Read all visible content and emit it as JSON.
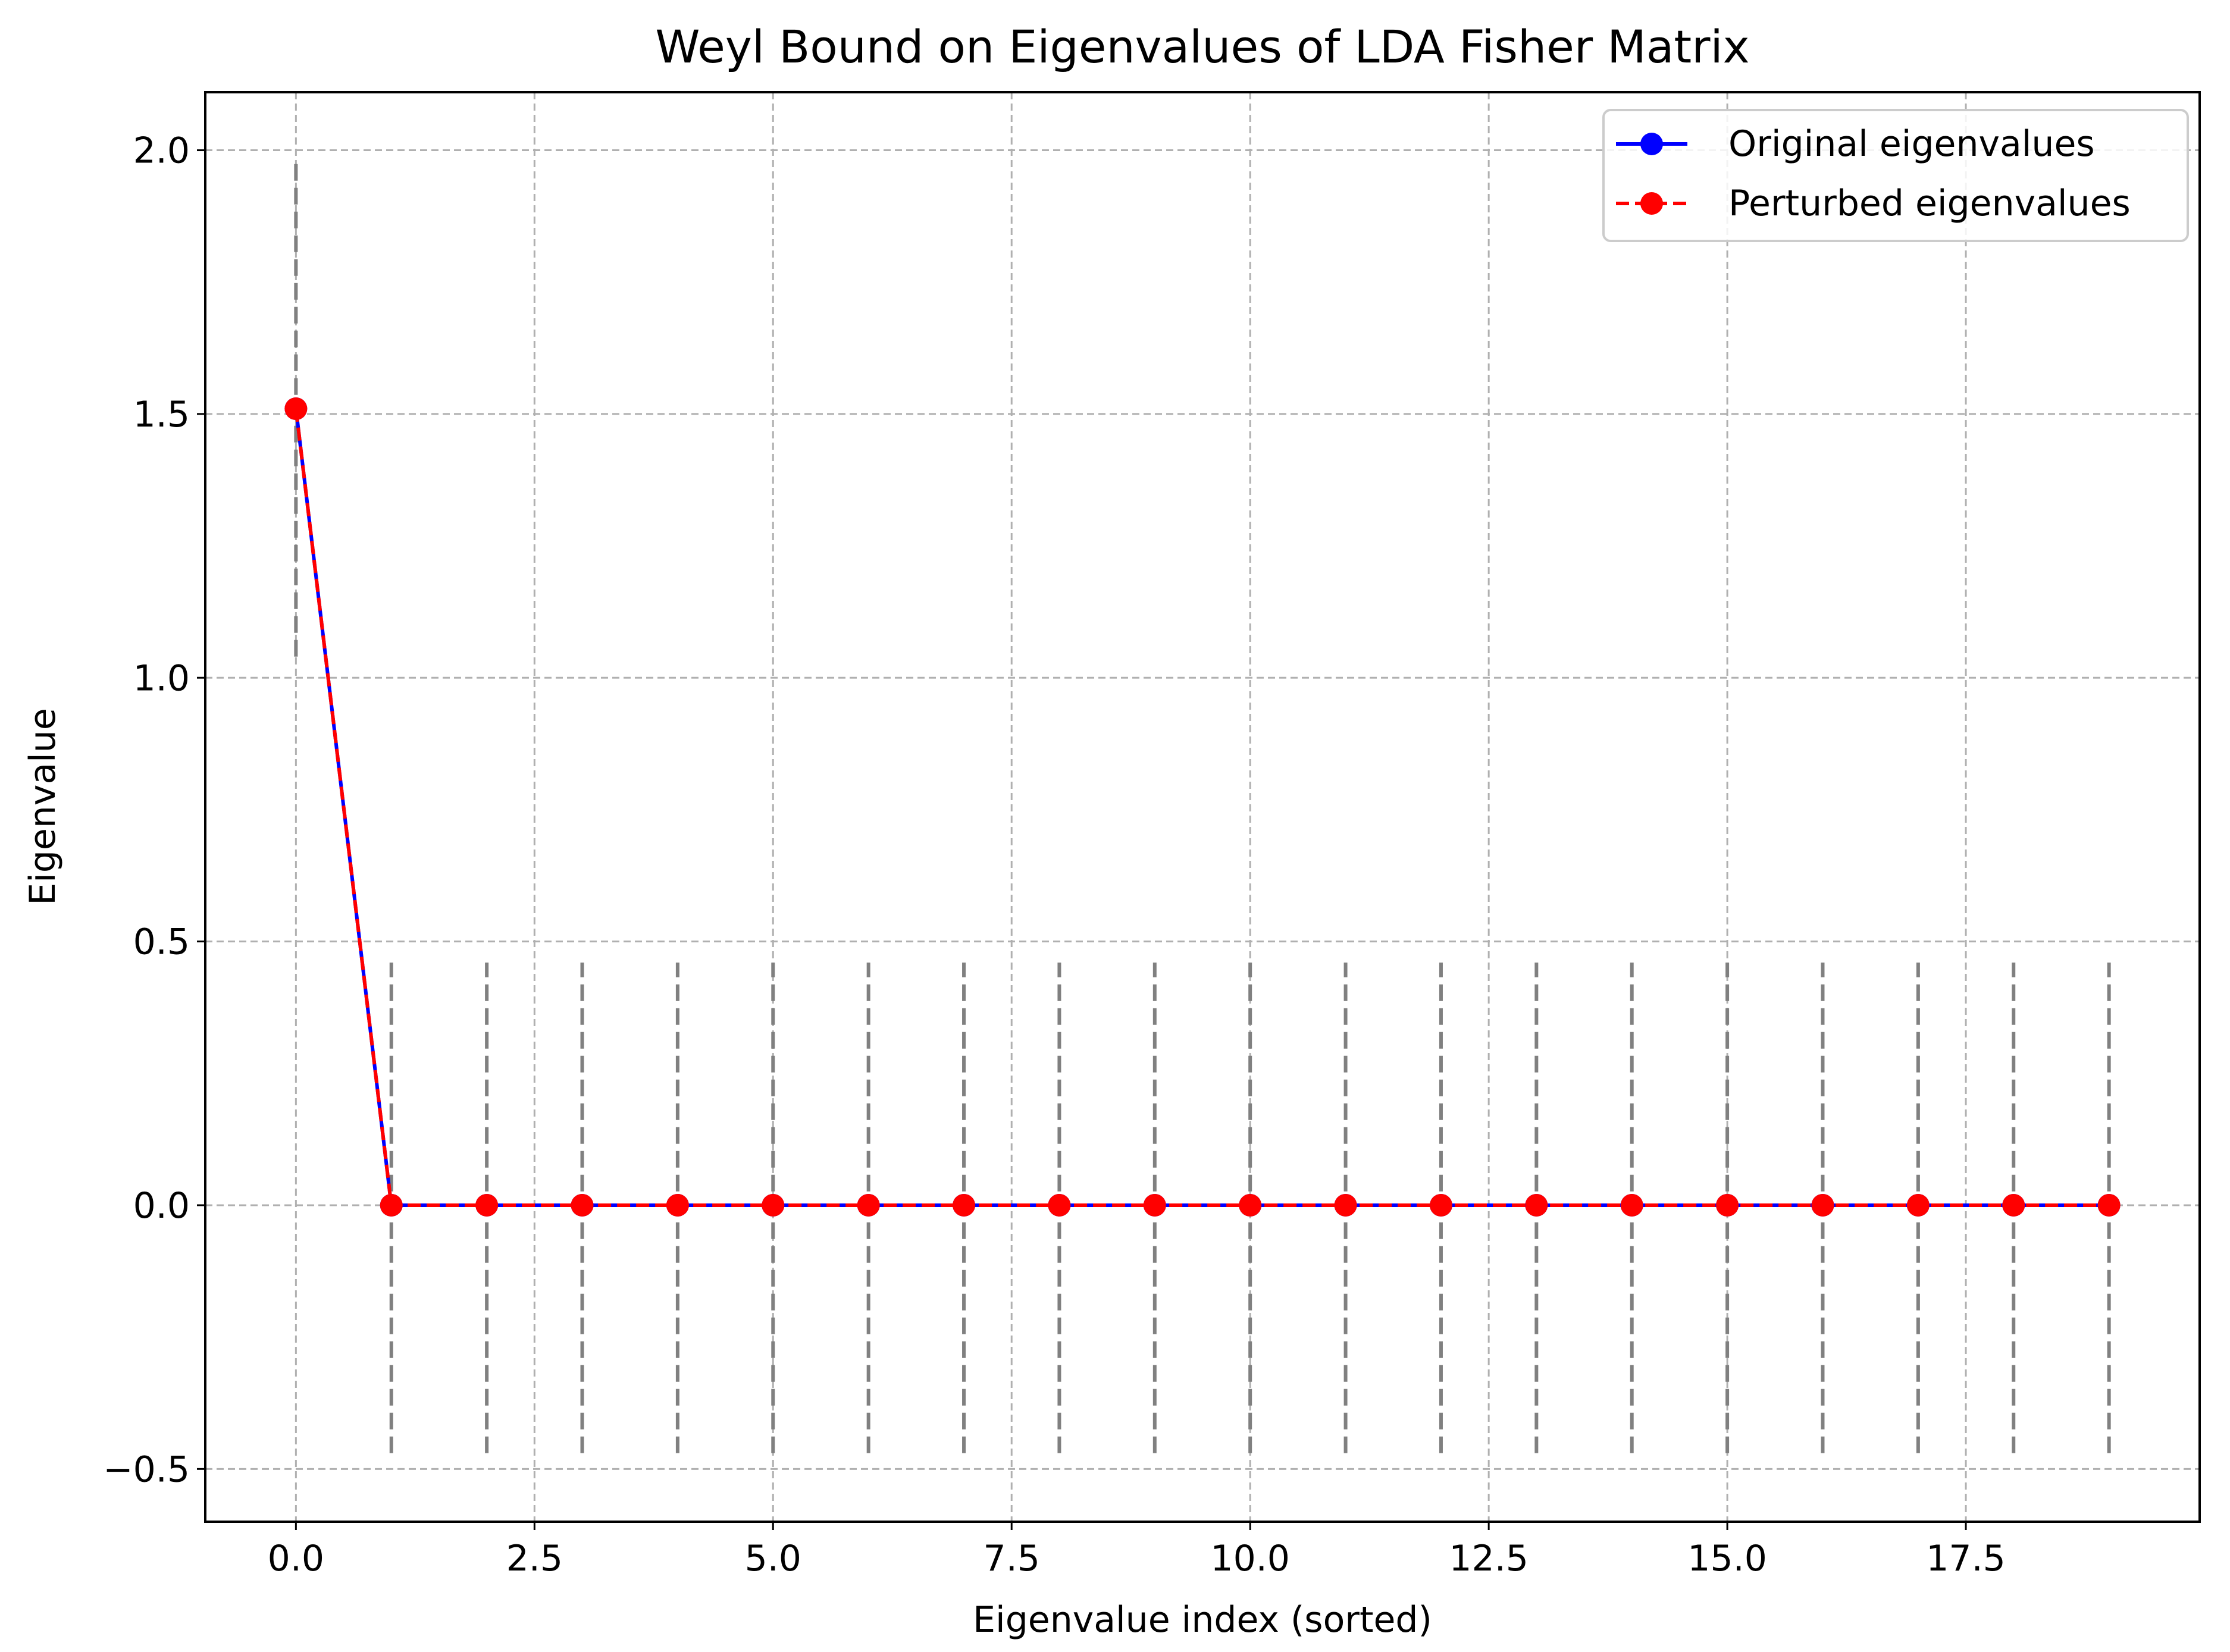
{
  "chart_data": {
    "type": "line",
    "title": "Weyl Bound on Eigenvalues of LDA Fisher Matrix",
    "xlabel": "Eigenvalue index (sorted)",
    "ylabel": "Eigenvalue",
    "xlim": [
      -0.95,
      19.95
    ],
    "ylim": [
      -0.6,
      2.11
    ],
    "xticks": [
      0,
      2.5,
      5,
      7.5,
      10,
      12.5,
      15,
      17.5
    ],
    "xtick_labels": [
      "0.0",
      "2.5",
      "5.0",
      "7.5",
      "10.0",
      "12.5",
      "15.0",
      "17.5"
    ],
    "yticks": [
      -0.5,
      0,
      0.5,
      1,
      1.5,
      2
    ],
    "ytick_labels": [
      "−0.5",
      "0.0",
      "0.5",
      "1.0",
      "1.5",
      "2.0"
    ],
    "grid": true,
    "legend_position": "top-right",
    "x": [
      0,
      1,
      2,
      3,
      4,
      5,
      6,
      7,
      8,
      9,
      10,
      11,
      12,
      13,
      14,
      15,
      16,
      17,
      18,
      19
    ],
    "series": [
      {
        "name": "Original eigenvalues",
        "color": "#0000ff",
        "line_style": "solid",
        "marker": "circle",
        "values": [
          1.51,
          0,
          0,
          0,
          0,
          0,
          0,
          0,
          0,
          0,
          0,
          0,
          0,
          0,
          0,
          0,
          0,
          0,
          0,
          0
        ]
      },
      {
        "name": "Perturbed eigenvalues",
        "color": "#ff0000",
        "line_style": "dashed",
        "marker": "circle",
        "values": [
          1.51,
          0,
          0,
          0,
          0,
          0,
          0,
          0,
          0,
          0,
          0,
          0,
          0,
          0,
          0,
          0,
          0,
          0,
          0,
          0
        ]
      }
    ],
    "bounds": {
      "color": "#808080",
      "line_style": "dashed",
      "x": [
        0,
        1,
        2,
        3,
        4,
        5,
        6,
        7,
        8,
        9,
        10,
        11,
        12,
        13,
        14,
        15,
        16,
        17,
        18,
        19
      ],
      "lower": [
        1.04,
        -0.47,
        -0.47,
        -0.47,
        -0.47,
        -0.47,
        -0.47,
        -0.47,
        -0.47,
        -0.47,
        -0.47,
        -0.47,
        -0.47,
        -0.47,
        -0.47,
        -0.47,
        -0.47,
        -0.47,
        -0.47,
        -0.47
      ],
      "upper": [
        1.98,
        0.46,
        0.46,
        0.46,
        0.46,
        0.46,
        0.46,
        0.46,
        0.46,
        0.46,
        0.46,
        0.46,
        0.46,
        0.46,
        0.46,
        0.46,
        0.46,
        0.46,
        0.46,
        0.46
      ]
    }
  }
}
